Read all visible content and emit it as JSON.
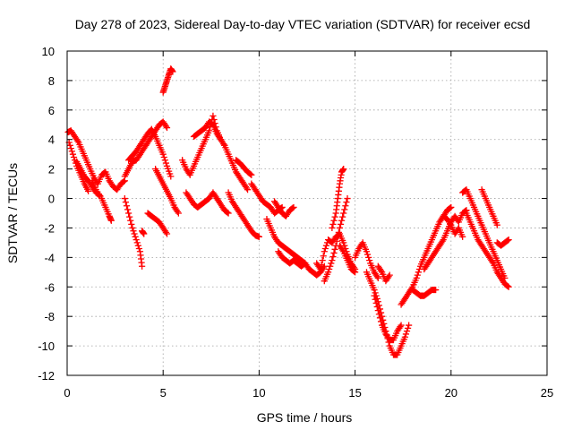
{
  "chart_data": {
    "type": "scatter",
    "title": "Day 278 of 2023, Sidereal Day-to-day VTEC variation (SDTVAR) for receiver ecsd",
    "xlabel": "GPS time / hours",
    "ylabel": "SDTVAR / TECUs",
    "xlim": [
      0,
      25
    ],
    "ylim": [
      -12,
      10
    ],
    "xticks": [
      0,
      5,
      10,
      15,
      20,
      25
    ],
    "yticks": [
      -12,
      -10,
      -8,
      -6,
      -4,
      -2,
      0,
      2,
      4,
      6,
      8,
      10
    ],
    "grid": true,
    "marker": "plus",
    "series": [
      {
        "name": "SDTVAR",
        "color": "#ff0000",
        "segments": [
          {
            "x": [
              0.05,
              0.2,
              0.4,
              0.6,
              0.8,
              1.0,
              1.2,
              1.4,
              1.6,
              1.8,
              2.0,
              2.2,
              2.4,
              2.6,
              2.8,
              3.0
            ],
            "y": [
              4.5,
              4.6,
              4.2,
              3.8,
              3.2,
              2.6,
              2.0,
              1.4,
              1.0,
              1.6,
              1.8,
              1.2,
              0.8,
              0.6,
              1.0,
              1.2
            ]
          },
          {
            "x": [
              0.1,
              0.3,
              0.5,
              0.7,
              0.9,
              1.1
            ],
            "y": [
              3.8,
              3.0,
              2.2,
              1.6,
              1.0,
              0.5
            ]
          },
          {
            "x": [
              1.3,
              1.5,
              1.8,
              2.0,
              2.2,
              2.3
            ],
            "y": [
              1.2,
              0.6,
              0.0,
              -0.6,
              -1.2,
              -1.5
            ]
          },
          {
            "x": [
              0.5,
              0.7,
              0.9,
              1.1,
              1.3,
              1.5,
              1.7
            ],
            "y": [
              2.5,
              2.0,
              1.5,
              1.2,
              0.8,
              0.4,
              0.2
            ]
          },
          {
            "x": [
              3.0,
              3.2,
              3.4,
              3.6,
              3.8,
              4.0,
              4.2,
              4.4,
              4.6,
              4.8,
              5.0,
              5.2
            ],
            "y": [
              1.5,
              2.0,
              2.5,
              2.6,
              3.0,
              3.4,
              3.8,
              4.2,
              4.6,
              5.0,
              5.2,
              4.8
            ]
          },
          {
            "x": [
              3.2,
              3.4,
              3.6,
              3.8,
              4.0,
              4.2,
              4.4,
              4.6,
              4.8,
              5.0,
              5.2,
              5.4
            ],
            "y": [
              2.6,
              2.9,
              3.2,
              3.6,
              4.0,
              4.4,
              4.7,
              4.2,
              3.6,
              3.0,
              2.2,
              1.5
            ]
          },
          {
            "x": [
              3.0,
              3.2,
              3.4,
              3.6,
              3.8,
              3.9
            ],
            "y": [
              0.0,
              -1.0,
              -2.0,
              -2.8,
              -3.6,
              -4.6
            ]
          },
          {
            "x": [
              4.2,
              4.4,
              4.6,
              4.8,
              5.0,
              5.2
            ],
            "y": [
              -1.0,
              -1.2,
              -1.4,
              -1.6,
              -2.0,
              -2.4
            ]
          },
          {
            "x": [
              3.9,
              4.0
            ],
            "y": [
              -2.2,
              -2.4
            ]
          },
          {
            "x": [
              4.6,
              4.8,
              5.0,
              5.2,
              5.4,
              5.6,
              5.8
            ],
            "y": [
              2.0,
              1.5,
              1.0,
              0.5,
              0.0,
              -0.6,
              -1.0
            ]
          },
          {
            "x": [
              5.0,
              5.1,
              5.2,
              5.3,
              5.4,
              5.5
            ],
            "y": [
              7.2,
              7.6,
              8.0,
              8.4,
              8.8,
              8.6
            ]
          },
          {
            "x": [
              6.0,
              6.2,
              6.4,
              6.6,
              6.8,
              7.0,
              7.2,
              7.4,
              7.6,
              7.8,
              8.0,
              8.2
            ],
            "y": [
              2.6,
              2.0,
              1.6,
              2.2,
              2.8,
              3.4,
              4.0,
              4.6,
              5.6,
              4.6,
              4.0,
              3.6
            ]
          },
          {
            "x": [
              6.6,
              6.8,
              7.0,
              7.2,
              7.4,
              7.6,
              7.8,
              8.0
            ],
            "y": [
              4.2,
              4.4,
              4.6,
              4.8,
              5.2,
              5.0,
              4.4,
              4.0
            ]
          },
          {
            "x": [
              6.2,
              6.4,
              6.6,
              6.8,
              7.0,
              7.2,
              7.4,
              7.6,
              7.8,
              8.0,
              8.2,
              8.4
            ],
            "y": [
              0.4,
              0.0,
              -0.4,
              -0.6,
              -0.4,
              -0.2,
              0.0,
              0.4,
              0.0,
              -0.4,
              -0.8,
              -1.0
            ]
          },
          {
            "x": [
              8.2,
              8.4,
              8.6,
              8.8,
              9.0,
              9.2,
              9.4
            ],
            "y": [
              3.6,
              3.0,
              2.4,
              1.8,
              1.4,
              1.0,
              0.6
            ]
          },
          {
            "x": [
              8.4,
              8.6,
              8.8,
              9.0,
              9.2,
              9.4,
              9.6,
              9.8,
              10.0
            ],
            "y": [
              0.4,
              -0.2,
              -0.6,
              -1.0,
              -1.4,
              -1.8,
              -2.2,
              -2.5,
              -2.6
            ]
          },
          {
            "x": [
              8.8,
              9.0,
              9.2,
              9.4,
              9.6
            ],
            "y": [
              2.6,
              2.4,
              2.1,
              1.8,
              1.6
            ]
          },
          {
            "x": [
              9.6,
              9.8,
              10.0,
              10.2,
              10.4,
              10.6,
              10.8,
              11.0,
              11.2
            ],
            "y": [
              1.0,
              0.6,
              0.2,
              -0.2,
              -0.4,
              -0.6,
              -1.0,
              -0.8,
              -0.6
            ]
          },
          {
            "x": [
              10.4,
              10.6,
              10.8,
              11.0,
              11.2,
              11.4,
              11.6,
              11.8,
              12.0,
              12.2,
              12.4,
              12.6,
              12.8,
              13.0,
              13.2,
              13.4
            ],
            "y": [
              -1.4,
              -2.0,
              -2.6,
              -3.0,
              -3.2,
              -3.4,
              -3.6,
              -3.8,
              -4.0,
              -4.2,
              -4.4,
              -4.8,
              -5.0,
              -5.2,
              -5.0,
              -4.6
            ]
          },
          {
            "x": [
              11.0,
              11.2,
              11.4,
              11.6,
              11.8,
              12.0,
              12.2,
              12.4
            ],
            "y": [
              -3.6,
              -4.0,
              -4.2,
              -4.4,
              -4.2,
              -4.4,
              -4.6,
              -4.4
            ]
          },
          {
            "x": [
              10.8,
              11.0,
              11.2,
              11.4,
              11.6,
              11.8
            ],
            "y": [
              -0.2,
              -0.6,
              -1.0,
              -1.2,
              -0.8,
              -0.6
            ]
          },
          {
            "x": [
              13.0,
              13.2,
              13.4,
              13.6,
              13.8,
              14.0,
              14.2,
              14.4,
              14.6,
              14.8,
              15.0
            ],
            "y": [
              -4.4,
              -4.8,
              -3.6,
              -2.8,
              -3.0,
              -2.6,
              -2.4,
              -3.0,
              -3.8,
              -4.4,
              -4.8
            ]
          },
          {
            "x": [
              13.4,
              13.6,
              13.8,
              14.0,
              14.2,
              14.4,
              14.6
            ],
            "y": [
              -5.6,
              -5.0,
              -4.2,
              -3.2,
              -2.0,
              -1.0,
              0.0
            ]
          },
          {
            "x": [
              13.8,
              14.0,
              14.1,
              14.2,
              14.3,
              14.4
            ],
            "y": [
              -2.0,
              -1.0,
              0.0,
              1.0,
              1.8,
              2.0
            ]
          },
          {
            "x": [
              14.2,
              14.4,
              14.6,
              14.8,
              15.0
            ],
            "y": [
              -3.2,
              -3.6,
              -4.2,
              -4.8,
              -5.0
            ]
          },
          {
            "x": [
              15.0,
              15.2,
              15.4,
              15.6,
              15.8,
              16.0,
              16.2
            ],
            "y": [
              -4.0,
              -3.4,
              -3.0,
              -3.6,
              -4.4,
              -5.0,
              -5.4
            ]
          },
          {
            "x": [
              15.6,
              15.8,
              16.0,
              16.2,
              16.4,
              16.6,
              16.8,
              17.0,
              17.2,
              17.4,
              17.6,
              17.8
            ],
            "y": [
              -5.0,
              -5.6,
              -6.2,
              -7.0,
              -8.0,
              -9.0,
              -10.0,
              -10.6,
              -10.6,
              -10.0,
              -9.4,
              -8.6
            ]
          },
          {
            "x": [
              16.0,
              16.2,
              16.4,
              16.6,
              16.8,
              17.0,
              17.2,
              17.4
            ],
            "y": [
              -6.6,
              -7.6,
              -8.6,
              -9.2,
              -9.6,
              -9.6,
              -9.0,
              -8.6
            ]
          },
          {
            "x": [
              16.2,
              16.4,
              16.6,
              16.8
            ],
            "y": [
              -4.6,
              -5.0,
              -5.6,
              -5.2
            ]
          },
          {
            "x": [
              17.4,
              17.6,
              17.8,
              18.0,
              18.2,
              18.4,
              18.6,
              18.8,
              19.0,
              19.2,
              19.4,
              19.6,
              19.8,
              20.0
            ],
            "y": [
              -7.2,
              -6.8,
              -6.4,
              -6.0,
              -5.4,
              -4.6,
              -4.0,
              -3.4,
              -2.8,
              -2.2,
              -1.6,
              -1.2,
              -0.8,
              -0.6
            ]
          },
          {
            "x": [
              18.0,
              18.2,
              18.4,
              18.6,
              18.8,
              19.0,
              19.2
            ],
            "y": [
              -6.2,
              -6.4,
              -6.6,
              -6.6,
              -6.4,
              -6.2,
              -6.2
            ]
          },
          {
            "x": [
              18.6,
              18.8,
              19.0,
              19.2,
              19.4,
              19.6,
              19.8,
              20.0,
              20.2,
              20.4,
              20.6,
              20.8
            ],
            "y": [
              -4.8,
              -4.4,
              -4.0,
              -3.6,
              -3.2,
              -2.8,
              -2.2,
              -1.6,
              -1.2,
              -1.6,
              -1.0,
              -0.8
            ]
          },
          {
            "x": [
              19.6,
              19.8,
              20.0,
              20.2,
              20.4,
              20.6
            ],
            "y": [
              -1.2,
              -1.4,
              -1.8,
              -2.4,
              -2.0,
              -2.6
            ]
          },
          {
            "x": [
              20.6,
              20.8,
              21.0,
              21.2,
              21.4,
              21.6,
              21.8,
              22.0,
              22.2,
              22.4,
              22.6,
              22.8
            ],
            "y": [
              0.4,
              0.6,
              0.0,
              -0.6,
              -1.2,
              -1.8,
              -2.4,
              -3.0,
              -3.6,
              -4.2,
              -4.8,
              -5.4
            ]
          },
          {
            "x": [
              20.8,
              21.0,
              21.2,
              21.4,
              21.6,
              21.8,
              22.0,
              22.2,
              22.4,
              22.6,
              22.8,
              23.0
            ],
            "y": [
              -1.0,
              -1.6,
              -2.2,
              -2.8,
              -3.2,
              -3.6,
              -4.0,
              -4.4,
              -5.0,
              -5.4,
              -5.8,
              -6.0
            ]
          },
          {
            "x": [
              21.6,
              21.8,
              22.0,
              22.2,
              22.4
            ],
            "y": [
              0.6,
              0.0,
              -0.6,
              -1.2,
              -1.8
            ]
          },
          {
            "x": [
              22.4,
              22.6,
              22.8,
              23.0
            ],
            "y": [
              -3.0,
              -3.2,
              -3.0,
              -2.8
            ]
          }
        ]
      }
    ]
  }
}
